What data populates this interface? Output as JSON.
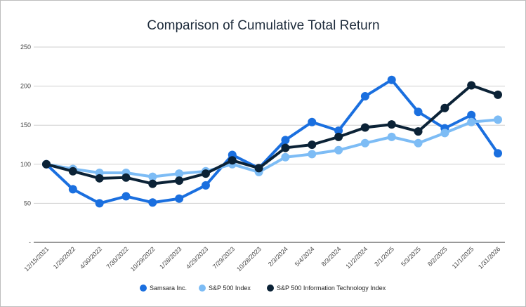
{
  "chart_data": {
    "type": "line",
    "title": "Comparison of Cumulative Total Return",
    "xlabel": "",
    "ylabel": "",
    "ylim": [
      0,
      250
    ],
    "yticks": [
      "-",
      "50",
      "100",
      "150",
      "200",
      "250"
    ],
    "grid": true,
    "legend_position": "bottom",
    "categories": [
      "12/15/2021",
      "1/29/2022",
      "4/30/2022",
      "7/30/2022",
      "10/29/2022",
      "1/28/2023",
      "4/29/2023",
      "7/29/2023",
      "10/28/2023",
      "2/3/2024",
      "5/4/2024",
      "8/3/2024",
      "11/2/2024",
      "2/1/2025",
      "5/3/2025",
      "8/2/2025",
      "11/1/2025",
      "1/31/2026"
    ],
    "series": [
      {
        "name": "Samsara Inc.",
        "color": "#1a6fdf",
        "values": [
          100,
          68,
          50,
          59,
          51,
          56,
          73,
          112,
          95,
          131,
          154,
          143,
          187,
          208,
          167,
          146,
          163,
          114
        ]
      },
      {
        "name": "S&P 500 Index",
        "color": "#7dbcf5",
        "values": [
          100,
          94,
          89,
          89,
          84,
          88,
          91,
          100,
          90,
          109,
          113,
          118,
          127,
          135,
          127,
          140,
          154,
          157
        ]
      },
      {
        "name": "S&P 500 Information Technology Index",
        "color": "#0b2236",
        "values": [
          100,
          91,
          82,
          83,
          75,
          79,
          88,
          105,
          95,
          121,
          125,
          135,
          147,
          151,
          142,
          172,
          201,
          189
        ]
      }
    ]
  }
}
